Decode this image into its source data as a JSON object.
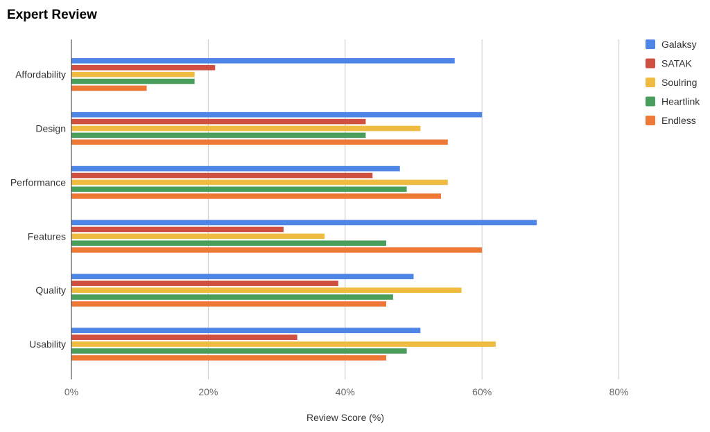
{
  "chart_data": {
    "type": "bar",
    "orientation": "horizontal",
    "title": "Expert Review",
    "xlabel": "Review Score (%)",
    "ylabel": "",
    "categories": [
      "Affordability",
      "Design",
      "Performance",
      "Features",
      "Quality",
      "Usability"
    ],
    "xlim": [
      0,
      90
    ],
    "xticks": [
      0,
      20,
      40,
      60,
      80
    ],
    "xtick_labels": [
      "0%",
      "20%",
      "40%",
      "60%",
      "80%"
    ],
    "grid": true,
    "legend_position": "right",
    "series": [
      {
        "name": "Galaksy",
        "color": "#4e86e8",
        "values": [
          56,
          60,
          48,
          68,
          50,
          51
        ]
      },
      {
        "name": "SATAK",
        "color": "#cf4f40",
        "values": [
          21,
          43,
          44,
          31,
          39,
          33
        ]
      },
      {
        "name": "Soulring",
        "color": "#f0bb41",
        "values": [
          18,
          51,
          55,
          37,
          57,
          62
        ]
      },
      {
        "name": "Heartlink",
        "color": "#4a9e5c",
        "values": [
          18,
          43,
          49,
          46,
          47,
          49
        ]
      },
      {
        "name": "Endless",
        "color": "#ee7937",
        "values": [
          11,
          55,
          54,
          60,
          46,
          46
        ]
      }
    ]
  }
}
